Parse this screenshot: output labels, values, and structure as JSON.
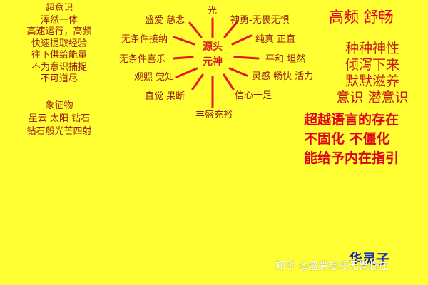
{
  "left_column": {
    "lines": [
      "超意识",
      "浑然一体",
      "高速运行，高频",
      "快速提取经验",
      "往下供给能量",
      "不为意识捕捉",
      "不可道尽"
    ]
  },
  "symbol_column": {
    "lines": [
      "象征物",
      "星云 太阳 钻石",
      "钻石般光芒四射"
    ]
  },
  "center": {
    "line1": "源头",
    "line2": "元神"
  },
  "rays": {
    "top": "光",
    "upper_left": "盛爱 慈悲",
    "upper_right": "神勇-无畏无惧",
    "left1": "无条件接纳",
    "right1": "纯真 正直",
    "left2": "无条件喜乐",
    "right2": "平和 坦然",
    "left3": "观照 觉知",
    "right3": "灵感 畅快 活力",
    "lower_left": "直觉 果断",
    "lower_right": "信心十足",
    "bottom": "丰盛充裕"
  },
  "right_top": {
    "heading": "高频 舒畅",
    "lines": [
      "种种神性",
      "倾泻下来",
      "默默滋养",
      "意识 潜意识"
    ]
  },
  "right_bottom": {
    "lines": [
      "超越语言的存在",
      "不固化 不僵化",
      "能给予内在指引"
    ]
  },
  "watermark": {
    "text": "知乎 @盛爱慈悲无畏临在",
    "blue_text": "华灵子"
  },
  "colors": {
    "background": "#FFFF33",
    "text_dark_red": "#9B1B10",
    "text_red": "#E0001A",
    "rays": "#E8141E",
    "watermark_blue": "#1A2FB0",
    "watermark_white": "#FFFFFF"
  }
}
